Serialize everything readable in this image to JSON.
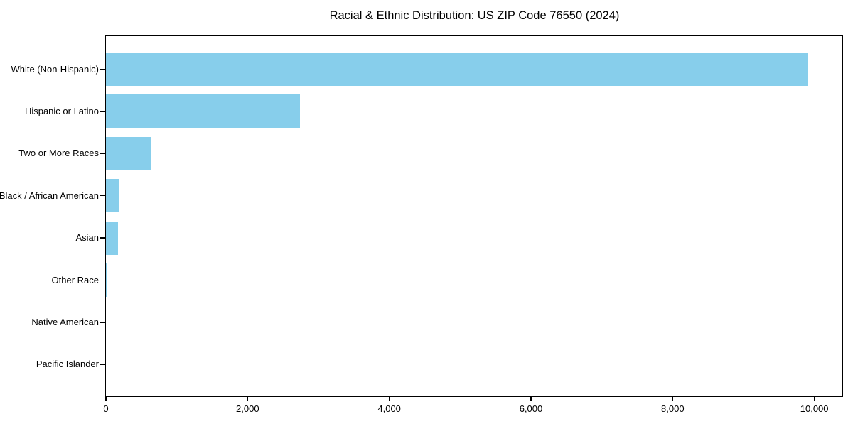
{
  "chart_data": {
    "type": "bar",
    "orientation": "horizontal",
    "title": "Racial & Ethnic Distribution: US ZIP Code 76550 (2024)",
    "categories": [
      "White (Non-Hispanic)",
      "Hispanic or Latino",
      "Two or More Races",
      "Black / African American",
      "Asian",
      "Other Race",
      "Native American",
      "Pacific Islander"
    ],
    "values": [
      9900,
      2740,
      640,
      180,
      170,
      10,
      0,
      0
    ],
    "xlabel": "",
    "ylabel": "",
    "xlim": [
      0,
      10395
    ],
    "x_ticks": [
      0,
      2000,
      4000,
      6000,
      8000,
      10000
    ],
    "x_tick_labels": [
      "0",
      "2,000",
      "4,000",
      "6,000",
      "8,000",
      "10,000"
    ],
    "bar_color": "#87CEEB",
    "frame_color": "#000000",
    "text_color": "#000000",
    "background_color": "#FFFFFF",
    "grid": false,
    "legend_position": "none"
  }
}
